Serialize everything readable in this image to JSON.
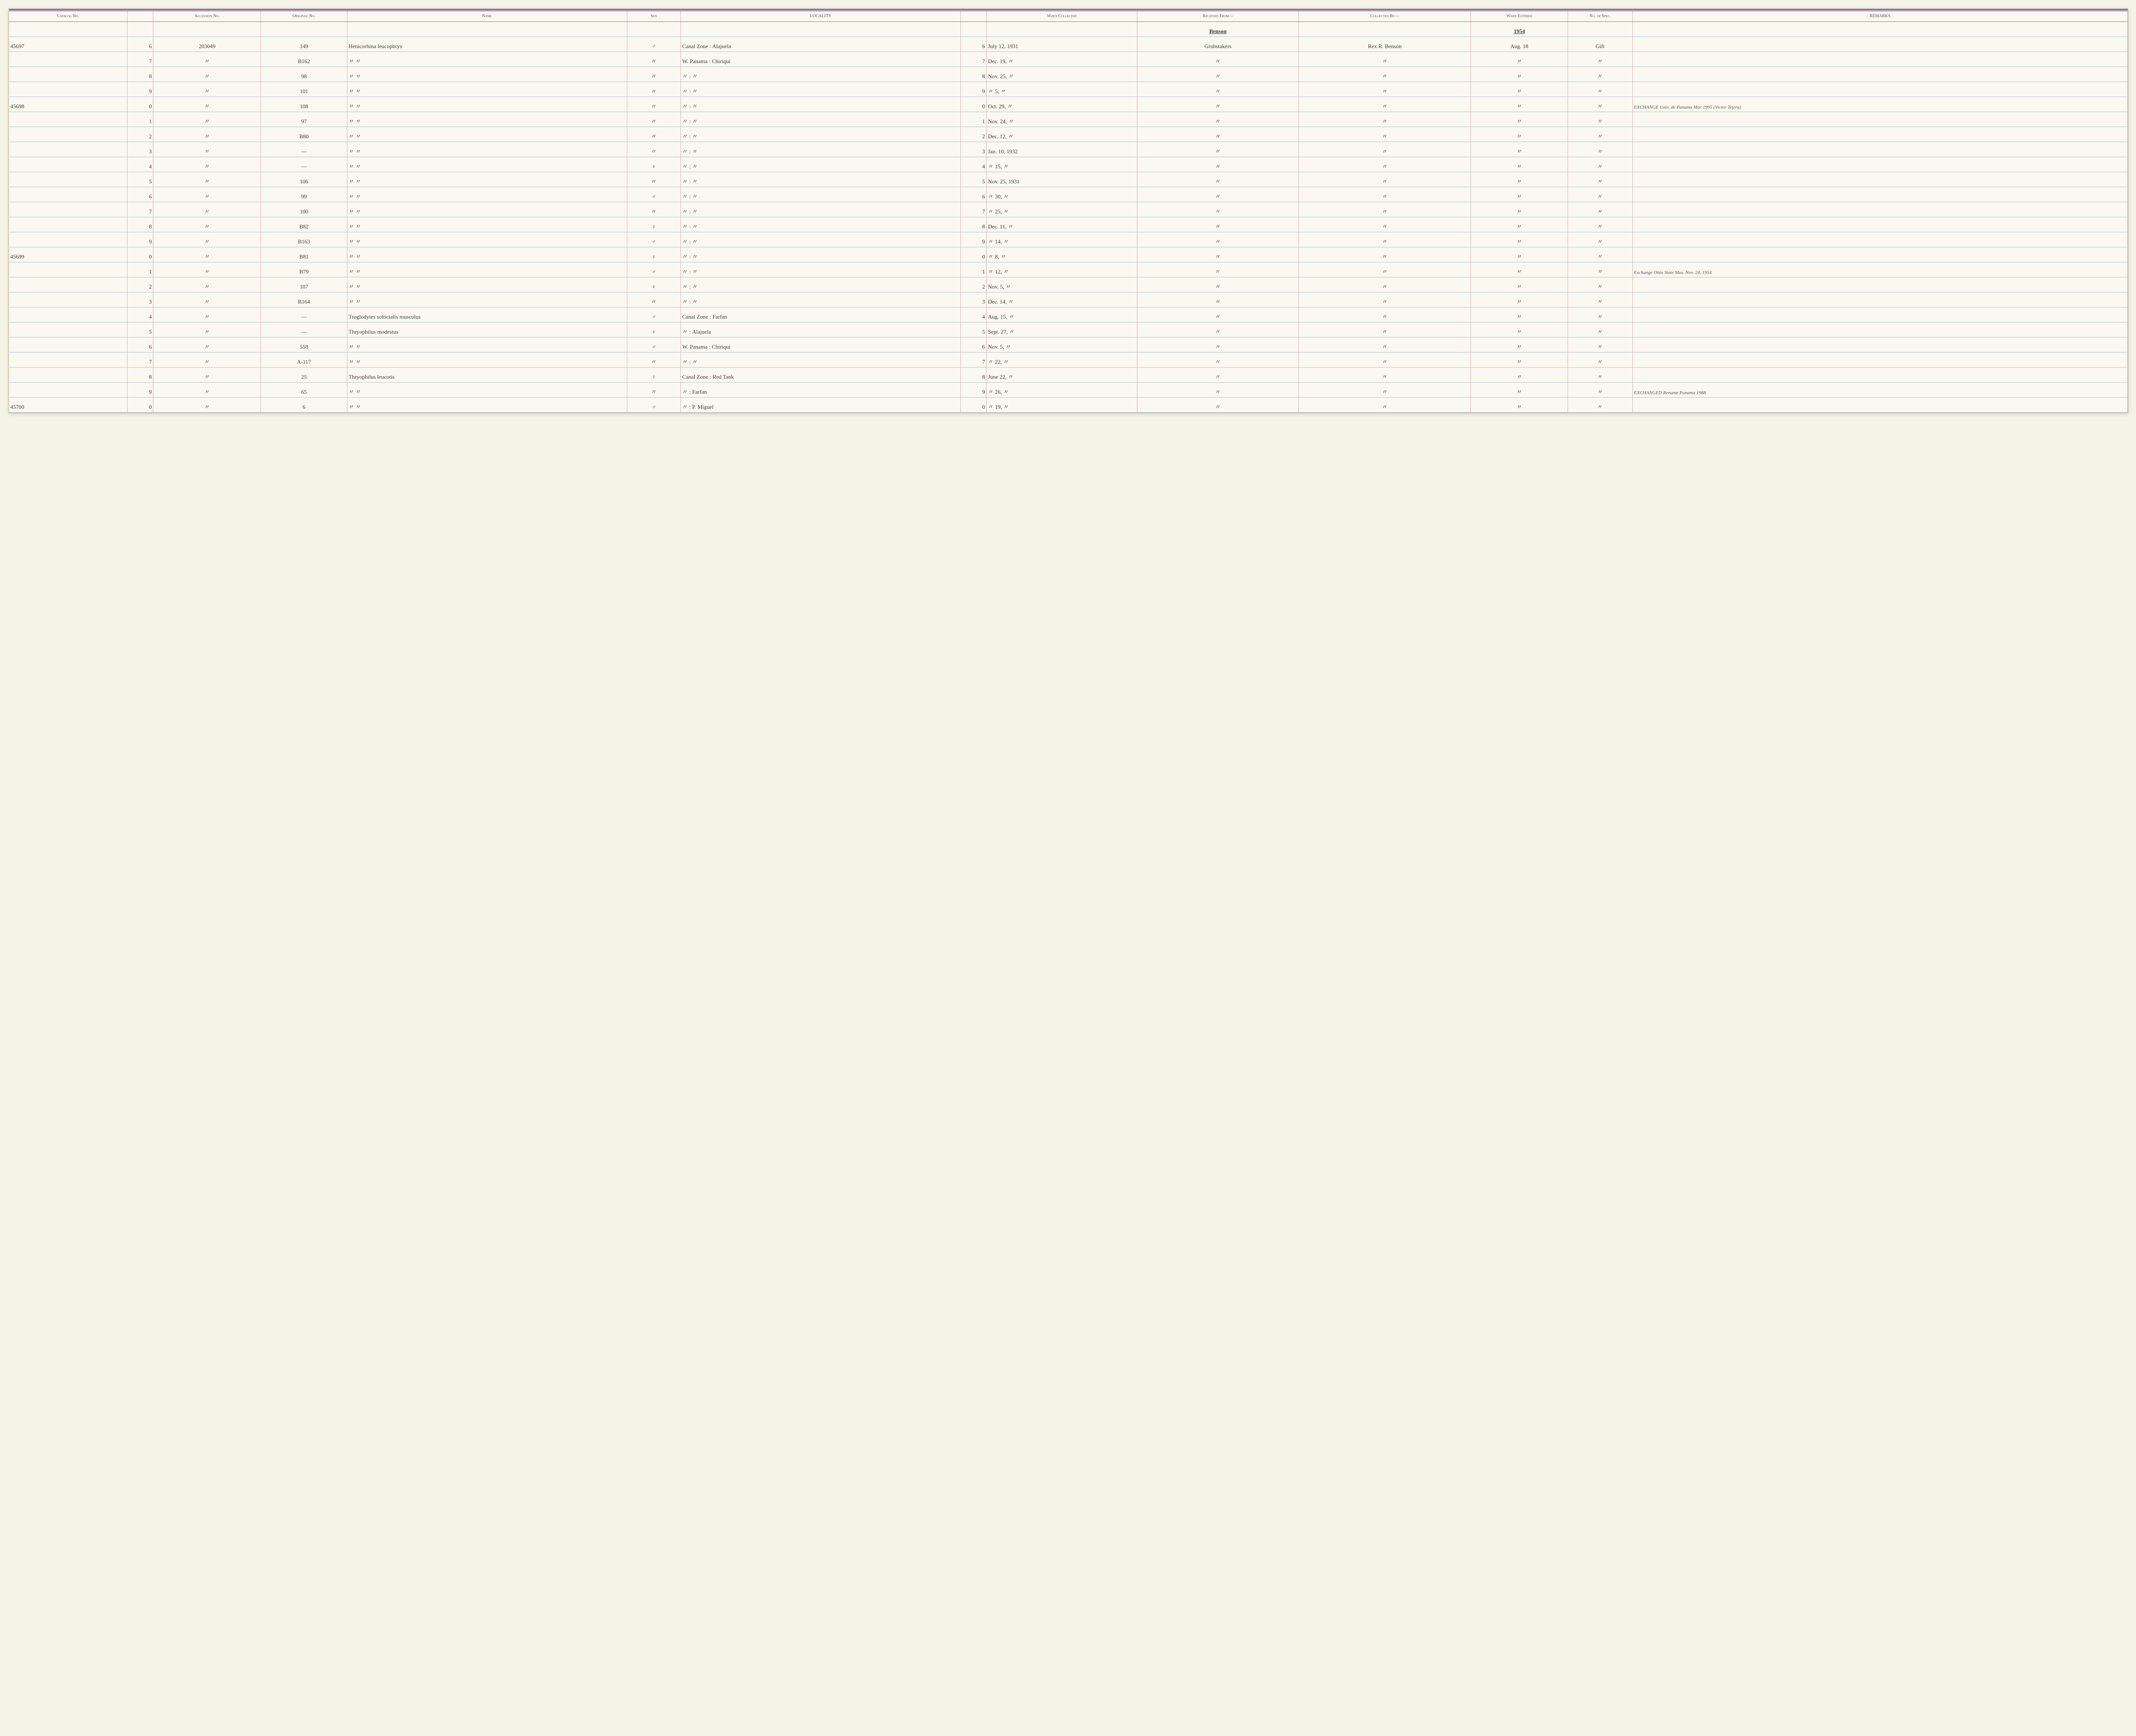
{
  "header": {
    "catalog": "Catalog\nNo.",
    "accession": "Accession\nNo.",
    "original": "Original\nNo.",
    "name": "Name",
    "sex": "Sex",
    "locality": "LOCALITY",
    "when_collected": "When\nCollected",
    "received_from": "Received From—",
    "collected_by": "Collected By—",
    "when_entered": "When\nEntered",
    "no_spec": "No.\nof\nSpec.",
    "remarks": "REMARKS"
  },
  "annotation": {
    "received": "Benson",
    "year": "1954"
  },
  "rows": [
    {
      "catalog": "45697",
      "sub": "6",
      "accession": "203049",
      "original": "149",
      "name": "Henicorhina leucophrys",
      "sex": "♂",
      "locality": "Canal Zone : Alajuela",
      "sub2": "6",
      "when_coll": "July 12, 1931",
      "received": "Grubstakers",
      "collected": "Rex R. Benson",
      "entered": "Aug. 18",
      "spec": "Gift",
      "remarks": ""
    },
    {
      "catalog": "",
      "sub": "7",
      "accession": "〃",
      "original": "B162",
      "name": "〃        〃",
      "sex": "〃",
      "locality": "W. Panama : Chiriqui",
      "sub2": "7",
      "when_coll": "Dec. 19, 〃",
      "received": "〃",
      "collected": "〃",
      "entered": "〃",
      "spec": "〃",
      "remarks": ""
    },
    {
      "catalog": "",
      "sub": "8",
      "accession": "〃",
      "original": "98",
      "name": "〃        〃",
      "sex": "〃",
      "locality": "〃     :    〃",
      "sub2": "8",
      "when_coll": "Nov. 25, 〃",
      "received": "〃",
      "collected": "〃",
      "entered": "〃",
      "spec": "〃",
      "remarks": ""
    },
    {
      "catalog": "",
      "sub": "9",
      "accession": "〃",
      "original": "101",
      "name": "〃        〃",
      "sex": "〃",
      "locality": "〃     :    〃",
      "sub2": "9",
      "when_coll": "〃 5, 〃",
      "received": "〃",
      "collected": "〃",
      "entered": "〃",
      "spec": "〃",
      "remarks": ""
    },
    {
      "catalog": "45698",
      "sub": "0",
      "accession": "〃",
      "original": "108",
      "name": "〃        〃",
      "sex": "〃",
      "locality": "〃     :    〃",
      "sub2": "0",
      "when_coll": "Oct. 29, 〃",
      "received": "〃",
      "collected": "〃",
      "entered": "〃",
      "spec": "〃",
      "remarks": "EXCHANGE Univ. de Panama Mar 1995 (Victor Tejera)"
    },
    {
      "catalog": "",
      "sub": "1",
      "accession": "〃",
      "original": "97",
      "name": "〃        〃",
      "sex": "〃",
      "locality": "〃     :    〃",
      "sub2": "1",
      "when_coll": "Nov. 24, 〃",
      "received": "〃",
      "collected": "〃",
      "entered": "〃",
      "spec": "〃",
      "remarks": ""
    },
    {
      "catalog": "",
      "sub": "2",
      "accession": "〃",
      "original": "B80",
      "name": "〃        〃",
      "sex": "〃",
      "locality": "〃     :    〃",
      "sub2": "2",
      "when_coll": "Dec. 12, 〃",
      "received": "〃",
      "collected": "〃",
      "entered": "〃",
      "spec": "〃",
      "remarks": ""
    },
    {
      "catalog": "",
      "sub": "3",
      "accession": "〃",
      "original": "—",
      "name": "〃        〃",
      "sex": "〃",
      "locality": "〃     :    〃",
      "sub2": "3",
      "when_coll": "Jan. 10, 1932",
      "received": "〃",
      "collected": "〃",
      "entered": "〃",
      "spec": "〃",
      "remarks": ""
    },
    {
      "catalog": "",
      "sub": "4",
      "accession": "〃",
      "original": "—",
      "name": "〃        〃",
      "sex": "♀",
      "locality": "〃     :    〃",
      "sub2": "4",
      "when_coll": "〃 15, 〃",
      "received": "〃",
      "collected": "〃",
      "entered": "〃",
      "spec": "〃",
      "remarks": ""
    },
    {
      "catalog": "",
      "sub": "5",
      "accession": "〃",
      "original": "106",
      "name": "〃        〃",
      "sex": "〃",
      "locality": "〃     :    〃",
      "sub2": "5",
      "when_coll": "Nov. 25, 1931",
      "received": "〃",
      "collected": "〃",
      "entered": "〃",
      "spec": "〃",
      "remarks": ""
    },
    {
      "catalog": "",
      "sub": "6",
      "accession": "〃",
      "original": "99",
      "name": "〃        〃",
      "sex": "♂",
      "locality": "〃     :    〃",
      "sub2": "6",
      "when_coll": "〃 30, 〃",
      "received": "〃",
      "collected": "〃",
      "entered": "〃",
      "spec": "〃",
      "remarks": ""
    },
    {
      "catalog": "",
      "sub": "7",
      "accession": "〃",
      "original": "100",
      "name": "〃        〃",
      "sex": "〃",
      "locality": "〃     :    〃",
      "sub2": "7",
      "when_coll": "〃 25, 〃",
      "received": "〃",
      "collected": "〃",
      "entered": "〃",
      "spec": "〃",
      "remarks": ""
    },
    {
      "catalog": "",
      "sub": "8",
      "accession": "〃",
      "original": "B82",
      "name": "〃        〃",
      "sex": "♀",
      "locality": "〃     :    〃",
      "sub2": "8",
      "when_coll": "Dec. 11, 〃",
      "received": "〃",
      "collected": "〃",
      "entered": "〃",
      "spec": "〃",
      "remarks": ""
    },
    {
      "catalog": "",
      "sub": "9",
      "accession": "〃",
      "original": "B163",
      "name": "〃        〃",
      "sex": "♂",
      "locality": "〃     :    〃",
      "sub2": "9",
      "when_coll": "〃 14, 〃",
      "received": "〃",
      "collected": "〃",
      "entered": "〃",
      "spec": "〃",
      "remarks": ""
    },
    {
      "catalog": "45699",
      "sub": "0",
      "accession": "〃",
      "original": "B81",
      "name": "〃        〃",
      "sex": "♀",
      "locality": "〃     :    〃",
      "sub2": "0",
      "when_coll": "〃 8, 〃",
      "received": "〃",
      "collected": "〃",
      "entered": "〃",
      "spec": "〃",
      "remarks": ""
    },
    {
      "catalog": "",
      "sub": "1",
      "accession": "〃",
      "original": "B79",
      "name": "〃        〃",
      "sex": "♂",
      "locality": "〃     :    〃",
      "sub2": "1",
      "when_coll": "〃 12, 〃",
      "received": "〃",
      "collected": "〃",
      "entered": "〃",
      "spec": "〃",
      "remarks": "Exchange Ohio State Mus. Nov. 24, 1954"
    },
    {
      "catalog": "",
      "sub": "2",
      "accession": "〃",
      "original": "107",
      "name": "〃        〃",
      "sex": "♀",
      "locality": "〃     :    〃",
      "sub2": "2",
      "when_coll": "Nov. 5, 〃",
      "received": "〃",
      "collected": "〃",
      "entered": "〃",
      "spec": "〃",
      "remarks": ""
    },
    {
      "catalog": "",
      "sub": "3",
      "accession": "〃",
      "original": "B164",
      "name": "〃        〃",
      "sex": "〃",
      "locality": "〃     :    〃",
      "sub2": "3",
      "when_coll": "Dec. 14, 〃",
      "received": "〃",
      "collected": "〃",
      "entered": "〃",
      "spec": "〃",
      "remarks": ""
    },
    {
      "catalog": "",
      "sub": "4",
      "accession": "〃",
      "original": "—",
      "name": "Troglodytes solticialis musculus",
      "sex": "♂",
      "locality": "Canal Zone : Farfan",
      "sub2": "4",
      "when_coll": "Aug. 15, 〃",
      "received": "〃",
      "collected": "〃",
      "entered": "〃",
      "spec": "〃",
      "remarks": ""
    },
    {
      "catalog": "",
      "sub": "5",
      "accession": "〃",
      "original": "—",
      "name": "Thryophilus modestus",
      "sex": "♀",
      "locality": "〃     : Alajuela",
      "sub2": "5",
      "when_coll": "Sept. 27, 〃",
      "received": "〃",
      "collected": "〃",
      "entered": "〃",
      "spec": "〃",
      "remarks": ""
    },
    {
      "catalog": "",
      "sub": "6",
      "accession": "〃",
      "original": "558",
      "name": "〃        〃",
      "sex": "♂",
      "locality": "W. Panama : Chiriqui",
      "sub2": "6",
      "when_coll": "Nov. 5, 〃",
      "received": "〃",
      "collected": "〃",
      "entered": "〃",
      "spec": "〃",
      "remarks": ""
    },
    {
      "catalog": "",
      "sub": "7",
      "accession": "〃",
      "original": "A-117",
      "name": "〃        〃",
      "sex": "〃",
      "locality": "〃     :    〃",
      "sub2": "7",
      "when_coll": "〃 22, 〃",
      "received": "〃",
      "collected": "〃",
      "entered": "〃",
      "spec": "〃",
      "remarks": ""
    },
    {
      "catalog": "",
      "sub": "8",
      "accession": "〃",
      "original": "25",
      "name": "Thryophilus leucotis",
      "sex": "♀",
      "locality": "Canal Zone : Red Tank",
      "sub2": "8",
      "when_coll": "June 22, 〃",
      "received": "〃",
      "collected": "〃",
      "entered": "〃",
      "spec": "〃",
      "remarks": ""
    },
    {
      "catalog": "",
      "sub": "9",
      "accession": "〃",
      "original": "65",
      "name": "〃        〃",
      "sex": "〃",
      "locality": "〃     : Farfan",
      "sub2": "9",
      "when_coll": "〃 26, 〃",
      "received": "〃",
      "collected": "〃",
      "entered": "〃",
      "spec": "〃",
      "remarks": "EXCHANGED Rename Panama 1988"
    },
    {
      "catalog": "45700",
      "sub": "0",
      "accession": "〃",
      "original": "6",
      "name": "〃        〃",
      "sex": "♂",
      "locality": "〃     : P. Miguel",
      "sub2": "0",
      "when_coll": "〃 19, 〃",
      "received": "〃",
      "collected": "〃",
      "entered": "〃",
      "spec": "〃",
      "remarks": ""
    }
  ]
}
